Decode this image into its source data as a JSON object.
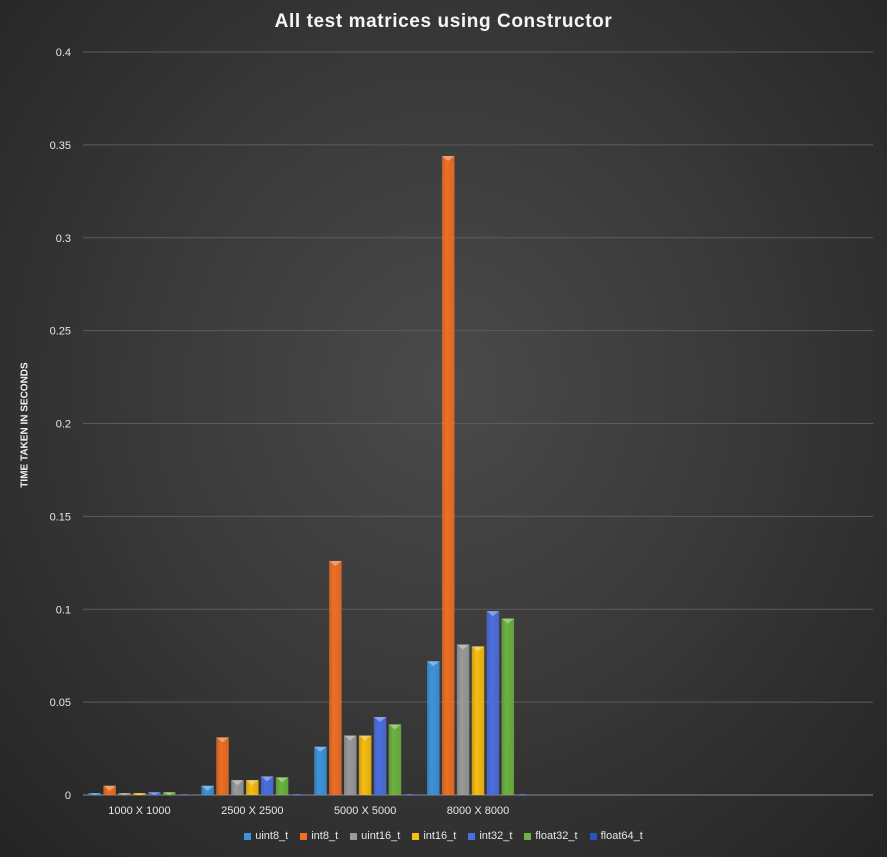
{
  "chart_data": {
    "type": "bar",
    "title": "All test matrices using Constructor",
    "xlabel": "",
    "ylabel": "TIME TAKEN IN SECONDS",
    "ylim": [
      0,
      0.4
    ],
    "yticks": [
      "0",
      "0.05",
      "0.1",
      "0.15",
      "0.2",
      "0.25",
      "0.3",
      "0.35",
      "0.4"
    ],
    "ytick_values": [
      0,
      0.05,
      0.1,
      0.15,
      0.2,
      0.25,
      0.3,
      0.35,
      0.4
    ],
    "categories": [
      "1000 X 1000",
      "2500 X 2500",
      "5000 X 5000",
      "8000 X 8000"
    ],
    "category_slots": 7,
    "grid": true,
    "legend_position": "bottom",
    "series": [
      {
        "name": "uint8_t",
        "color": "#3d93dd",
        "values": [
          0.001,
          0.005,
          0.026,
          0.072
        ]
      },
      {
        "name": "int8_t",
        "color": "#ee6f22",
        "values": [
          0.005,
          0.031,
          0.126,
          0.344
        ]
      },
      {
        "name": "uint16_t",
        "color": "#9a9a9a",
        "values": [
          0.001,
          0.008,
          0.032,
          0.081
        ]
      },
      {
        "name": "int16_t",
        "color": "#f7bd0f",
        "values": [
          0.001,
          0.008,
          0.032,
          0.08
        ]
      },
      {
        "name": "int32_t",
        "color": "#4a6fe0",
        "values": [
          0.0015,
          0.01,
          0.042,
          0.099
        ]
      },
      {
        "name": "float32_t",
        "color": "#6cb33f",
        "values": [
          0.0015,
          0.0095,
          0.038,
          0.095
        ]
      },
      {
        "name": "float64_t",
        "color": "#2a52c0",
        "values": [
          0.0003,
          0.0005,
          0.0005,
          0.0005
        ]
      }
    ]
  }
}
